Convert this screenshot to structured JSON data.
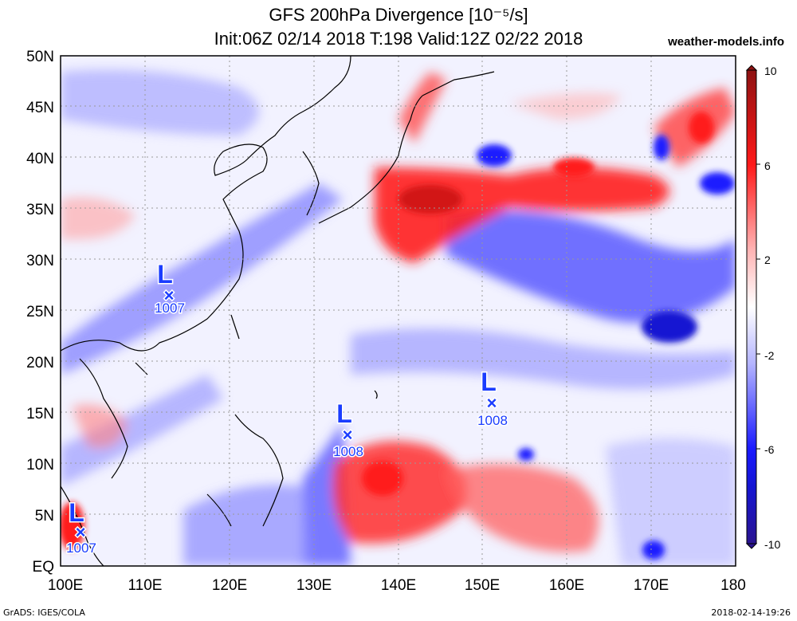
{
  "header": {
    "title": "GFS 200hPa Divergence [10⁻⁵/s]",
    "subtitle": "Init:06Z 02/14 2018 T:198 Valid:12Z 02/22 2018",
    "site": "weather-models.info"
  },
  "footer": {
    "credit": "GrADS: IGES/COLA",
    "timestamp": "2018-02-14-19:26"
  },
  "axes": {
    "lat_labels": [
      "50N",
      "45N",
      "40N",
      "35N",
      "30N",
      "25N",
      "20N",
      "15N",
      "10N",
      "5N",
      "EQ"
    ],
    "lon_labels": [
      "100E",
      "110E",
      "120E",
      "130E",
      "140E",
      "150E",
      "160E",
      "170E",
      "180"
    ]
  },
  "colorbar": {
    "ticks": [
      "10",
      "6",
      "2",
      "-2",
      "-6",
      "-10"
    ],
    "colors": [
      "#8e1212",
      "#d21515",
      "#ff1a1a",
      "#ff7070",
      "#ffb4b4",
      "#ffe6e6",
      "#ffffff",
      "#e6e6ff",
      "#b4b4ff",
      "#7070ff",
      "#1a1aff",
      "#1515d2",
      "#2a1490"
    ]
  },
  "lows": [
    {
      "letter": "L",
      "mark": "×",
      "value": "1007"
    },
    {
      "letter": "L",
      "mark": "×",
      "value": "1008"
    },
    {
      "letter": "L",
      "mark": "×",
      "value": "1008"
    },
    {
      "letter": "L",
      "mark": "×",
      "value": "1007"
    }
  ]
}
